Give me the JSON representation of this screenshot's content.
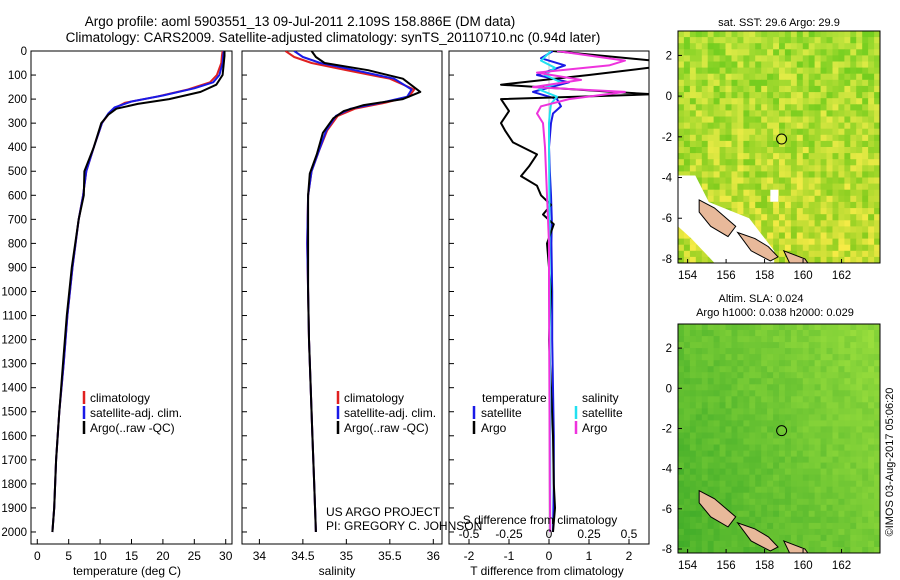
{
  "title": {
    "line1": "Argo profile: aoml 5903551_13 09-Jul-2011 2.109S 158.886E (DM data)",
    "line2": "Climatology: CARS2009. Satellite-adjusted climatology: synTS_20110710.nc (0.94d later)"
  },
  "colors": {
    "climatology": "#e02020",
    "satellite": "#1a1ae6",
    "argo": "#000000",
    "sal_satellite": "#22e0f0",
    "sal_argo": "#ee33dd",
    "sst_land": "#e8b99a"
  },
  "chart_data": [
    {
      "type": "line",
      "id": "temperature",
      "xlabel": "temperature (deg C)",
      "xlim": [
        -1,
        31
      ],
      "xticks": [
        0,
        5,
        10,
        15,
        20,
        25,
        30
      ],
      "ylim": [
        0,
        2050
      ],
      "yticks": [
        0,
        100,
        200,
        300,
        400,
        500,
        600,
        700,
        800,
        900,
        1000,
        1100,
        1200,
        1300,
        1400,
        1500,
        1600,
        1700,
        1800,
        1900,
        2000
      ],
      "legend": [
        "climatology",
        "satellite-adj. clim.",
        "Argo(..raw -QC)"
      ],
      "series": [
        {
          "name": "climatology",
          "color": "#e02020",
          "x": [
            29.5,
            29.4,
            29.3,
            28.6,
            27.5,
            24,
            19,
            14,
            12.5,
            11.4,
            10.3,
            9,
            7.8,
            7.3,
            6.6,
            5.6,
            4.8,
            4.2,
            3.5,
            3.0,
            2.7,
            2.4
          ],
          "y": [
            0,
            20,
            50,
            100,
            130,
            160,
            190,
            215,
            235,
            260,
            300,
            400,
            500,
            600,
            700,
            900,
            1100,
            1300,
            1500,
            1700,
            1900,
            2000
          ]
        },
        {
          "name": "satellite-adj. clim.",
          "color": "#1a1ae6",
          "x": [
            29.7,
            29.6,
            29.5,
            29.0,
            28.0,
            25,
            20,
            15,
            12.3,
            11.3,
            10.3,
            9,
            7.8,
            7.3,
            6.6,
            5.6,
            4.8,
            4.2,
            3.5,
            3.0,
            2.7,
            2.4
          ],
          "y": [
            0,
            20,
            50,
            100,
            130,
            155,
            185,
            210,
            235,
            260,
            300,
            400,
            500,
            600,
            700,
            900,
            1100,
            1300,
            1500,
            1700,
            1900,
            2000
          ]
        },
        {
          "name": "Argo(..raw -QC)",
          "color": "#000000",
          "x": [
            29.8,
            29.8,
            29.7,
            29.5,
            28.5,
            26,
            21,
            16,
            12.6,
            11.3,
            10.2,
            9,
            7.5,
            7.4,
            6.6,
            5.5,
            4.7,
            4.1,
            3.5,
            3.0,
            2.7,
            2.4
          ],
          "y": [
            0,
            20,
            50,
            100,
            140,
            170,
            200,
            220,
            240,
            265,
            300,
            400,
            500,
            600,
            700,
            900,
            1100,
            1300,
            1500,
            1700,
            1900,
            2000
          ]
        }
      ]
    },
    {
      "type": "line",
      "id": "salinity",
      "xlabel": "salinity",
      "xlim": [
        33.8,
        36.1
      ],
      "xticks": [
        34,
        34.5,
        35,
        35.5,
        36
      ],
      "ylim": [
        0,
        2050
      ],
      "legend": [
        "climatology",
        "satellite-adj. clim.",
        "Argo(..raw -QC)"
      ],
      "annotation": [
        "US ARGO PROJECT",
        "PI: GREGORY C. JOHNSON"
      ],
      "series": [
        {
          "name": "climatology",
          "color": "#e02020",
          "x": [
            34.3,
            34.4,
            34.6,
            35.0,
            35.5,
            35.78,
            35.72,
            35.45,
            35.1,
            34.9,
            34.78,
            34.68,
            34.6,
            34.56,
            34.55,
            34.56,
            34.57,
            34.59,
            34.61,
            34.63,
            34.65
          ],
          "y": [
            0,
            25,
            50,
            80,
            115,
            160,
            190,
            215,
            240,
            270,
            330,
            420,
            500,
            600,
            800,
            1000,
            1200,
            1400,
            1600,
            1800,
            2000
          ]
        },
        {
          "name": "satellite-adj. clim.",
          "color": "#1a1ae6",
          "x": [
            34.4,
            34.5,
            34.7,
            35.1,
            35.55,
            35.75,
            35.7,
            35.4,
            35.05,
            34.88,
            34.77,
            34.68,
            34.6,
            34.56,
            34.55,
            34.56,
            34.57,
            34.59,
            34.61,
            34.63,
            34.65
          ],
          "y": [
            0,
            25,
            50,
            80,
            115,
            160,
            190,
            215,
            240,
            270,
            330,
            420,
            500,
            600,
            800,
            1000,
            1200,
            1400,
            1600,
            1800,
            2000
          ]
        },
        {
          "name": "Argo(..raw -QC)",
          "color": "#000000",
          "x": [
            34.6,
            34.65,
            34.75,
            35.25,
            35.65,
            35.85,
            35.65,
            35.2,
            34.97,
            34.85,
            34.73,
            34.66,
            34.58,
            34.56,
            34.56,
            34.56,
            34.57,
            34.59,
            34.61,
            34.63,
            34.65
          ],
          "y": [
            0,
            25,
            50,
            80,
            115,
            170,
            200,
            225,
            250,
            280,
            340,
            430,
            510,
            600,
            800,
            1000,
            1200,
            1400,
            1600,
            1800,
            2000
          ]
        }
      ]
    },
    {
      "type": "line",
      "id": "differences",
      "xlabel": "T difference from climatology",
      "xlabel_top": "S difference from climatology",
      "xlim": [
        -2.5,
        2.5
      ],
      "xticks": [
        -2,
        -1,
        0,
        1,
        2
      ],
      "xticks_s": [
        -0.5,
        -0.25,
        0,
        0.25,
        0.5
      ],
      "ylim": [
        0,
        2050
      ],
      "legend_left_title": "temperature",
      "legend_right_title": "salinity",
      "legend": [
        "satellite",
        "Argo",
        "satellite",
        "Argo"
      ],
      "series": [
        {
          "name": "T satellite",
          "color": "#1a1ae6",
          "x": [
            0.1,
            -0.2,
            0.4,
            -0.3,
            0.5,
            -0.4,
            0.2,
            0.3,
            0.1,
            0.05,
            0,
            0.02,
            0.05,
            0.07,
            0.06,
            0.08,
            0.08,
            0.1,
            0.12,
            0.12,
            0.1
          ],
          "y": [
            0,
            30,
            60,
            100,
            130,
            170,
            200,
            230,
            260,
            300,
            400,
            500,
            600,
            700,
            800,
            1000,
            1200,
            1400,
            1600,
            1800,
            2000
          ]
        },
        {
          "name": "T Argo",
          "color": "#000000",
          "x": [
            0.1,
            2.6,
            2.5,
            1.0,
            -1.2,
            1.6,
            2.6,
            -1.2,
            -1.0,
            -1.2,
            -1.1,
            -0.9,
            -0.3,
            -0.5,
            -0.7,
            -0.3,
            -0.2,
            0.05,
            -0.15,
            0.12,
            -0.05,
            0.05,
            0.0,
            0.05,
            0.1,
            0.12,
            0.15,
            0.1
          ],
          "y": [
            0,
            40,
            70,
            100,
            140,
            170,
            180,
            200,
            250,
            300,
            330,
            380,
            430,
            480,
            520,
            560,
            600,
            640,
            680,
            720,
            800,
            1000,
            1200,
            1400,
            1600,
            1800,
            1900,
            2000
          ]
        },
        {
          "name": "S satellite",
          "color": "#22e0f0",
          "x": [
            0.05,
            -0.2,
            0.15,
            -0.1,
            0.3,
            -0.25,
            0.2,
            0.05,
            0.02,
            0,
            0,
            0.01,
            0.01,
            0.02,
            0.02,
            0.03,
            0.03,
            0.03
          ],
          "y": [
            0,
            40,
            70,
            100,
            130,
            160,
            190,
            220,
            260,
            300,
            400,
            600,
            800,
            1000,
            1200,
            1500,
            1800,
            2000
          ]
        },
        {
          "name": "S Argo",
          "color": "#ee33dd",
          "x": [
            0.2,
            1.9,
            1.5,
            -0.3,
            0.8,
            -0.4,
            1.9,
            0.5,
            -0.2,
            -0.3,
            -0.15,
            -0.1,
            -0.05,
            0,
            0,
            0.01,
            0.02,
            0.03
          ],
          "y": [
            0,
            40,
            60,
            90,
            120,
            150,
            170,
            200,
            230,
            260,
            300,
            400,
            600,
            800,
            1000,
            1400,
            1800,
            2000
          ]
        }
      ]
    },
    {
      "type": "heatmap",
      "id": "sst-map",
      "title": "sat. SST: 29.6  Argo: 29.9",
      "xlim": [
        153.5,
        164
      ],
      "ylim": [
        -8.2,
        3.2
      ],
      "xticks": [
        154,
        156,
        158,
        160,
        162
      ],
      "yticks": [
        2,
        0,
        -2,
        -4,
        -6,
        -8
      ],
      "marker": {
        "lon": 158.886,
        "lat": -2.109
      }
    },
    {
      "type": "heatmap",
      "id": "sla-map",
      "title_line1": "Altim. SLA: 0.024",
      "title_line2": "Argo h1000: 0.038  h2000: 0.029",
      "xlim": [
        153.5,
        164
      ],
      "ylim": [
        -8.2,
        3.2
      ],
      "xticks": [
        154,
        156,
        158,
        160,
        162
      ],
      "yticks": [
        2,
        0,
        -2,
        -4,
        -6,
        -8
      ],
      "marker": {
        "lon": 158.886,
        "lat": -2.109
      }
    }
  ],
  "credit": "©IMOS 03-Aug-2017 05:06:20"
}
